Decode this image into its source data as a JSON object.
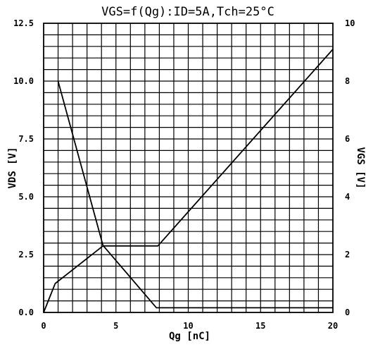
{
  "chart_data": {
    "type": "line",
    "title": "VGS=f(Qg):ID=5A,Tch=25°C",
    "xlabel": "Qg [nC]",
    "ylabel_left": "VDS [V]",
    "ylabel_right": "VGS [V]",
    "xlim": [
      0,
      20
    ],
    "ylim_left": [
      0,
      12.5
    ],
    "ylim_right": [
      0,
      10
    ],
    "x_ticks": [
      "0",
      "5",
      "10",
      "15",
      "20"
    ],
    "y_left_ticks": [
      "0.0",
      "2.5",
      "5.0",
      "7.5",
      "10.0",
      "12.5"
    ],
    "y_right_ticks": [
      "0",
      "2",
      "4",
      "6",
      "8",
      "10"
    ],
    "grid": true,
    "series": [
      {
        "axis": "left",
        "x": [
          1.0,
          4.1,
          7.8,
          20.0
        ],
        "y": [
          10.0,
          2.9,
          0.2,
          0.2
        ]
      },
      {
        "axis": "right",
        "x": [
          0.0,
          0.8,
          4.1,
          7.9,
          20.0
        ],
        "y": [
          0.0,
          1.0,
          2.3,
          2.3,
          9.1
        ]
      }
    ]
  }
}
